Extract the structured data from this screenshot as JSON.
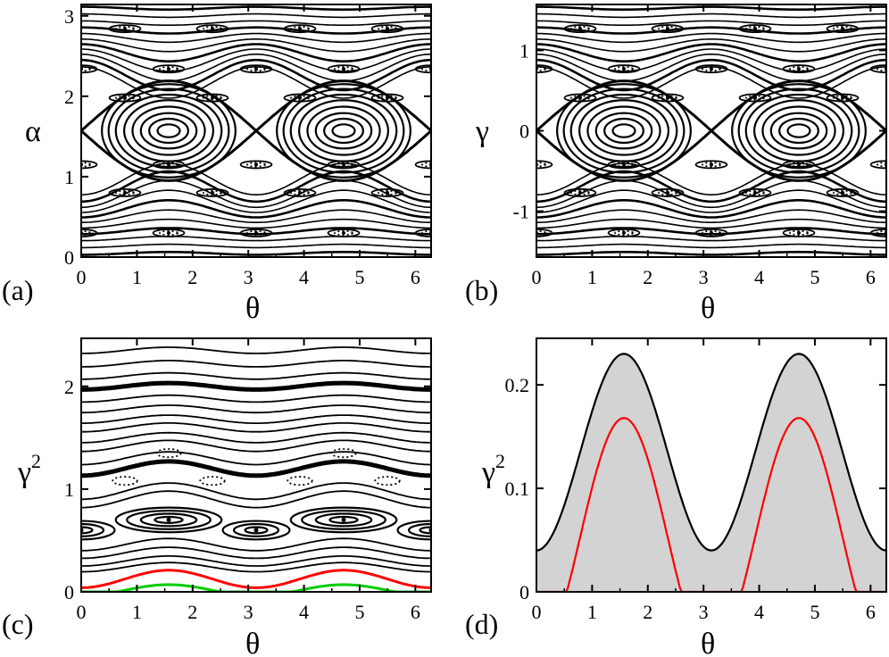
{
  "chart_data": [
    {
      "panel": "(a)",
      "type": "scatter",
      "xlabel": "θ",
      "ylabel": "α",
      "xlim": [
        0,
        6.283
      ],
      "ylim": [
        0,
        3.1416
      ],
      "xticks": [
        0,
        1,
        2,
        3,
        4,
        5,
        6
      ],
      "xtick_labels": [
        "0",
        "1",
        "2",
        "3",
        "4",
        "5",
        "6"
      ],
      "yticks": [
        0,
        1,
        2,
        3
      ],
      "ytick_labels": [
        "0",
        "1",
        "2",
        "3"
      ],
      "centers": [
        [
          1.5708,
          1.5708
        ],
        [
          4.7124,
          1.5708
        ]
      ],
      "island_semi_axes": [
        [
          0.2,
          0.08
        ],
        [
          0.35,
          0.15
        ],
        [
          0.5,
          0.22
        ],
        [
          0.65,
          0.3
        ],
        [
          0.8,
          0.38
        ],
        [
          0.95,
          0.45
        ],
        [
          1.08,
          0.52
        ],
        [
          1.2,
          0.58
        ]
      ],
      "island_rows": [
        0.3,
        0.8,
        1.15,
        1.98,
        2.34,
        2.84
      ],
      "island_row_offsets": [
        0,
        0.785,
        0,
        0.785,
        0,
        0.785
      ],
      "color": "#000000"
    },
    {
      "panel": "(b)",
      "type": "scatter",
      "xlabel": "θ",
      "ylabel": "γ",
      "xlim": [
        0,
        6.283
      ],
      "ylim": [
        -1.5708,
        1.5708
      ],
      "xticks": [
        0,
        1,
        2,
        3,
        4,
        5,
        6
      ],
      "xtick_labels": [
        "0",
        "1",
        "2",
        "3",
        "4",
        "5",
        "6"
      ],
      "yticks": [
        -1,
        0,
        1
      ],
      "ytick_labels": [
        "-1",
        "0",
        "1"
      ],
      "centers": [
        [
          1.5708,
          0
        ],
        [
          4.7124,
          0
        ]
      ],
      "island_semi_axes": [
        [
          0.2,
          0.08
        ],
        [
          0.35,
          0.15
        ],
        [
          0.5,
          0.22
        ],
        [
          0.65,
          0.3
        ],
        [
          0.8,
          0.38
        ],
        [
          0.95,
          0.45
        ],
        [
          1.08,
          0.52
        ],
        [
          1.2,
          0.58
        ]
      ],
      "island_rows": [
        -1.27,
        -0.77,
        -0.42,
        0.41,
        0.77,
        1.27
      ],
      "island_row_offsets": [
        0,
        0.785,
        0,
        0.785,
        0,
        0.785
      ],
      "color": "#000000"
    },
    {
      "panel": "(c)",
      "type": "scatter",
      "xlabel": "θ",
      "ylabel": "γ",
      "ylabel_sup": "2",
      "xlim": [
        0,
        6.283
      ],
      "ylim": [
        0,
        2.467
      ],
      "xticks": [
        0,
        1,
        2,
        3,
        4,
        5,
        6
      ],
      "xtick_labels": [
        "0",
        "1",
        "2",
        "3",
        "4",
        "5",
        "6"
      ],
      "yticks": [
        0,
        1,
        2
      ],
      "ytick_labels": [
        "0",
        "1",
        "2"
      ],
      "islands": [
        {
          "theta": 1.5708,
          "gamma2": 0.7,
          "rx": [
            0.25,
            0.5,
            0.75,
            0.95
          ],
          "ry": [
            0.03,
            0.06,
            0.09,
            0.12
          ]
        },
        {
          "theta": 4.7124,
          "gamma2": 0.7,
          "rx": [
            0.25,
            0.5,
            0.75,
            0.95
          ],
          "ry": [
            0.03,
            0.06,
            0.09,
            0.12
          ]
        },
        {
          "theta": 3.1416,
          "gamma2": 0.6,
          "rx": [
            0.2,
            0.4,
            0.6
          ],
          "ry": [
            0.03,
            0.06,
            0.09
          ]
        },
        {
          "theta": 0.0,
          "gamma2": 0.6,
          "rx": [
            0.2,
            0.4,
            0.6
          ],
          "ry": [
            0.03,
            0.06,
            0.09
          ]
        },
        {
          "theta": 6.2832,
          "gamma2": 0.6,
          "rx": [
            0.2,
            0.4,
            0.6
          ],
          "ry": [
            0.03,
            0.06,
            0.09
          ]
        }
      ],
      "dotted_islands": [
        [
          0.785,
          1.08
        ],
        [
          2.356,
          1.08
        ],
        [
          3.927,
          1.08
        ],
        [
          5.498,
          1.08
        ],
        [
          1.5708,
          1.35
        ],
        [
          4.7124,
          1.35
        ]
      ],
      "red_curve": {
        "baseline": 0.04,
        "amplitude": 0.17,
        "color": "#ff0000"
      },
      "green_curve": {
        "baseline": 0.0,
        "amplitude": 0.11,
        "color": "#00cc00"
      },
      "color": "#000000"
    },
    {
      "panel": "(d)",
      "type": "line",
      "xlabel": "θ",
      "ylabel": "γ",
      "ylabel_sup": "2",
      "xlim": [
        0,
        6.283
      ],
      "ylim": [
        0,
        0.245
      ],
      "xticks": [
        0,
        1,
        2,
        3,
        4,
        5,
        6
      ],
      "xtick_labels": [
        "0",
        "1",
        "2",
        "3",
        "4",
        "5",
        "6"
      ],
      "yticks": [
        0,
        0.1,
        0.2
      ],
      "ytick_labels": [
        "0",
        "0.1",
        "0.2"
      ],
      "upper_envelope": {
        "baseline": 0.04,
        "amplitude": 0.19,
        "color": "#000000"
      },
      "red_curve": {
        "offset": -0.062,
        "amplitude": 0.23,
        "color": "#ff0000"
      },
      "band_color": "#d3d3d3"
    }
  ],
  "panel_tags": [
    "(a)",
    "(b)",
    "(c)",
    "(d)"
  ]
}
